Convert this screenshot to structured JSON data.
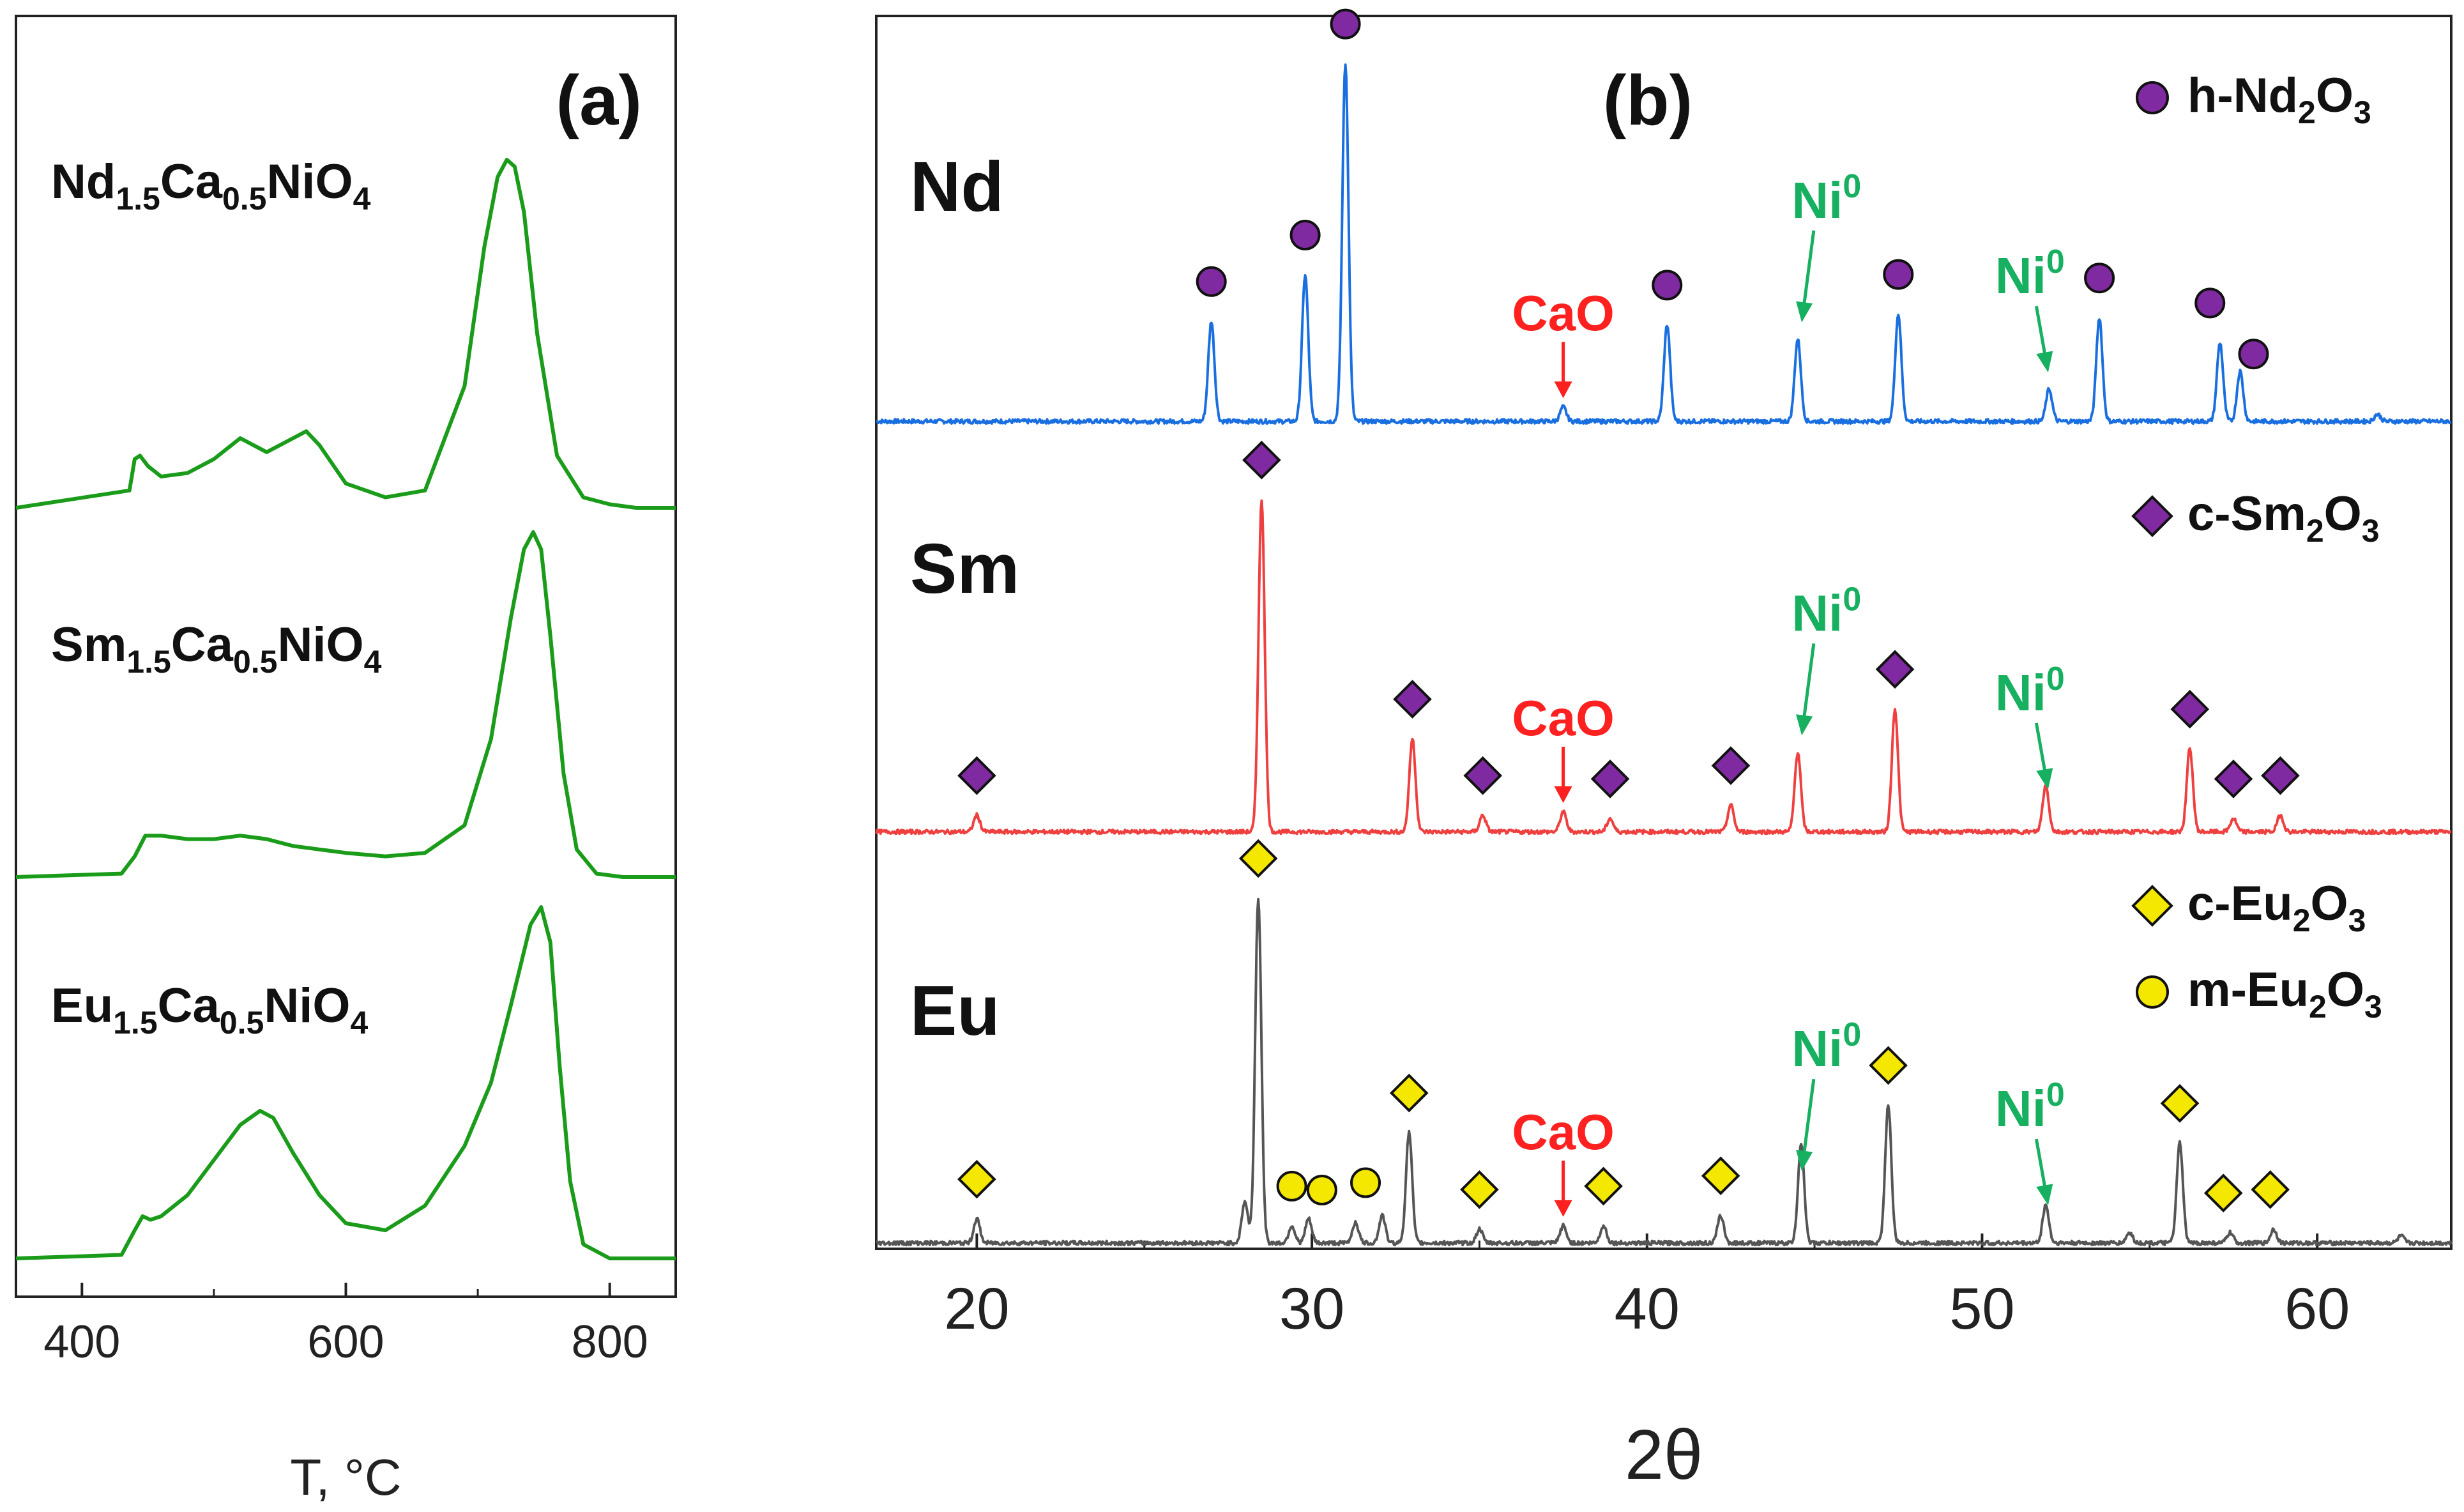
{
  "chart_data": [
    {
      "type": "line",
      "panel_label": "(a)",
      "xlabel": "T, °C",
      "ylabel": "",
      "xlim": [
        350,
        850
      ],
      "x_ticks": [
        400,
        600,
        800
      ],
      "y_ticks_shown": false,
      "grid": false,
      "line_color": "#1a9c1a",
      "series": [
        {
          "label_main": [
            "Nd",
            "Ca",
            "NiO"
          ],
          "label_sub": [
            "1.5",
            "0.5",
            "4"
          ],
          "x": [
            350,
            436,
            440,
            444,
            450,
            460,
            480,
            500,
            520,
            540,
            560,
            570,
            580,
            600,
            630,
            660,
            690,
            705,
            715,
            722,
            728,
            735,
            745,
            760,
            780,
            800,
            820,
            850
          ],
          "y": [
            0,
            0.05,
            0.14,
            0.15,
            0.12,
            0.09,
            0.1,
            0.14,
            0.2,
            0.16,
            0.2,
            0.22,
            0.18,
            0.07,
            0.03,
            0.05,
            0.35,
            0.75,
            0.95,
            1.0,
            0.98,
            0.85,
            0.5,
            0.15,
            0.03,
            0.01,
            0,
            0
          ]
        },
        {
          "label_main": [
            "Sm",
            "Ca",
            "NiO"
          ],
          "label_sub": [
            "1.5",
            "0.5",
            "4"
          ],
          "x": [
            350,
            430,
            440,
            448,
            460,
            480,
            500,
            520,
            540,
            560,
            580,
            600,
            630,
            660,
            690,
            710,
            725,
            735,
            742,
            748,
            755,
            765,
            775,
            790,
            810,
            850
          ],
          "y": [
            0,
            0.01,
            0.06,
            0.12,
            0.12,
            0.11,
            0.11,
            0.12,
            0.11,
            0.09,
            0.08,
            0.07,
            0.06,
            0.07,
            0.15,
            0.4,
            0.75,
            0.95,
            1.0,
            0.95,
            0.7,
            0.3,
            0.08,
            0.01,
            0,
            0
          ]
        },
        {
          "label_main": [
            "Eu",
            "Ca",
            "NiO"
          ],
          "label_sub": [
            "1.5",
            "0.5",
            "4"
          ],
          "x": [
            350,
            430,
            440,
            446,
            452,
            460,
            480,
            500,
            520,
            535,
            545,
            560,
            580,
            600,
            630,
            660,
            690,
            710,
            725,
            740,
            748,
            755,
            762,
            770,
            780,
            800,
            850
          ],
          "y": [
            0,
            0.01,
            0.08,
            0.12,
            0.11,
            0.12,
            0.18,
            0.28,
            0.38,
            0.42,
            0.4,
            0.3,
            0.18,
            0.1,
            0.08,
            0.15,
            0.32,
            0.5,
            0.72,
            0.95,
            1.0,
            0.9,
            0.55,
            0.22,
            0.04,
            0,
            0
          ]
        }
      ]
    },
    {
      "type": "line",
      "panel_label": "(b)",
      "xlabel": "2θ",
      "ylabel": "",
      "xlim": [
        17,
        64
      ],
      "x_ticks": [
        20,
        30,
        40,
        50,
        60
      ],
      "y_ticks_shown": false,
      "grid": false,
      "series": [
        {
          "name": "Nd",
          "color": "#1a6fe0",
          "peaks": [
            [
              27.0,
              0.28
            ],
            [
              29.8,
              0.41
            ],
            [
              31.0,
              1.0
            ],
            [
              37.5,
              0.04
            ],
            [
              40.6,
              0.27
            ],
            [
              44.5,
              0.23
            ],
            [
              47.5,
              0.3
            ],
            [
              52.0,
              0.09
            ],
            [
              53.5,
              0.29
            ],
            [
              57.1,
              0.22
            ],
            [
              57.7,
              0.14
            ],
            [
              61.8,
              0.02
            ]
          ],
          "baseline": 0.015
        },
        {
          "name": "Sm",
          "color": "#ef4040",
          "peaks": [
            [
              20.0,
              0.05
            ],
            [
              28.5,
              1.0
            ],
            [
              33.0,
              0.28
            ],
            [
              35.1,
              0.05
            ],
            [
              37.5,
              0.06
            ],
            [
              38.9,
              0.04
            ],
            [
              42.5,
              0.08
            ],
            [
              44.5,
              0.24
            ],
            [
              47.4,
              0.37
            ],
            [
              51.9,
              0.14
            ],
            [
              56.2,
              0.25
            ],
            [
              57.5,
              0.04
            ],
            [
              58.9,
              0.05
            ]
          ],
          "baseline": 0.015
        },
        {
          "name": "Eu",
          "color": "#555555",
          "peaks": [
            [
              20.0,
              0.07
            ],
            [
              28.0,
              0.12
            ],
            [
              28.4,
              1.0
            ],
            [
              29.4,
              0.05
            ],
            [
              29.9,
              0.07
            ],
            [
              31.3,
              0.06
            ],
            [
              32.1,
              0.08
            ],
            [
              32.9,
              0.32
            ],
            [
              35.0,
              0.04
            ],
            [
              37.5,
              0.05
            ],
            [
              38.7,
              0.05
            ],
            [
              42.2,
              0.08
            ],
            [
              44.6,
              0.29
            ],
            [
              47.2,
              0.4
            ],
            [
              51.9,
              0.11
            ],
            [
              54.4,
              0.03
            ],
            [
              55.9,
              0.29
            ],
            [
              57.4,
              0.03
            ],
            [
              58.7,
              0.04
            ],
            [
              62.5,
              0.02
            ]
          ],
          "baseline": 0.015
        }
      ],
      "legend": [
        {
          "marker": "circle",
          "color": "#7f2aa0",
          "text_main": [
            "h-Nd",
            "O"
          ],
          "text_sub": [
            "2",
            "3"
          ]
        },
        {
          "marker": "diamond",
          "color": "#7f2aa0",
          "text_main": [
            "c-Sm",
            "O"
          ],
          "text_sub": [
            "2",
            "3"
          ]
        },
        {
          "marker": "diamond",
          "color": "#f5e800",
          "text_main": [
            "c-Eu",
            "O"
          ],
          "text_sub": [
            "2",
            "3"
          ]
        },
        {
          "marker": "circle",
          "color": "#f5e800",
          "text_main": [
            "m-Eu",
            "O"
          ],
          "text_sub": [
            "2",
            "3"
          ]
        }
      ],
      "annotations": {
        "cao_text": "CaO",
        "cao_color": "#ff2020",
        "ni_text": "Ni",
        "ni_sup": "0",
        "ni_color": "#16b060",
        "cao_at": 37.5,
        "ni_at": [
          44.5,
          52.0
        ]
      },
      "markers": [
        {
          "series": "Nd",
          "shape": "circle",
          "color": "#7f2aa0",
          "x": [
            27.0,
            29.8,
            31.0,
            40.6,
            47.5,
            53.5,
            56.8,
            58.1
          ]
        },
        {
          "series": "Sm",
          "shape": "diamond",
          "color": "#7f2aa0",
          "x": [
            20.0,
            28.5,
            33.0,
            35.1,
            38.9,
            42.5,
            47.4,
            56.2,
            57.5,
            58.9
          ]
        },
        {
          "series": "Eu",
          "shape": "diamond",
          "color": "#f5e800",
          "x": [
            20.0,
            28.4,
            32.9,
            35.0,
            38.7,
            42.2,
            47.2,
            55.9,
            57.2,
            58.6
          ]
        },
        {
          "series": "Eu",
          "shape": "circle",
          "color": "#f5e800",
          "x": [
            29.4,
            30.3,
            31.6
          ]
        }
      ]
    }
  ]
}
